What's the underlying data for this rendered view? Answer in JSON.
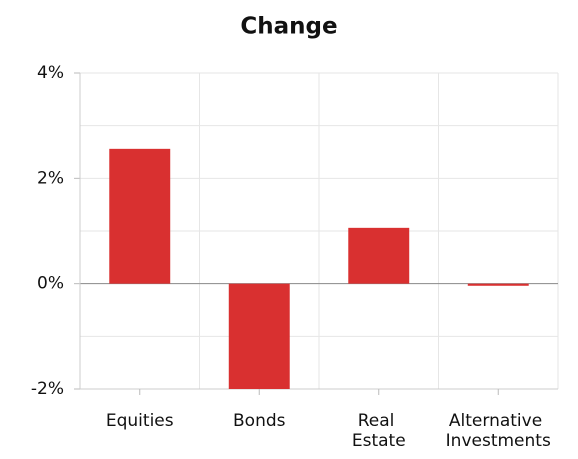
{
  "chart_data": {
    "type": "bar",
    "title": "Change",
    "categories": [
      "Equities",
      "Bonds",
      "Real Estate",
      "Alternative Investments"
    ],
    "values": [
      2.56,
      -2,
      1.06,
      -0.04
    ],
    "color": "#d93030",
    "ylim": [
      -2,
      4
    ],
    "yticks": [
      {
        "value": -2,
        "label": "-2%"
      },
      {
        "value": 0,
        "label": "0%"
      },
      {
        "value": 2,
        "label": "2%"
      },
      {
        "value": 4,
        "label": "4%"
      }
    ],
    "minor_yticks": [
      -1,
      1,
      3
    ],
    "grid": true
  }
}
